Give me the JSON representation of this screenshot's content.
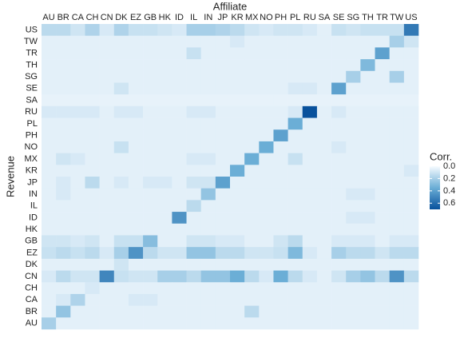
{
  "chart_data": {
    "type": "heatmap",
    "x_label": "Affiliate",
    "y_label": "Revenue",
    "legend_title": "Corr.",
    "cols": [
      "AU",
      "BR",
      "CA",
      "CH",
      "CN",
      "DK",
      "EZ",
      "GB",
      "HK",
      "ID",
      "IL",
      "IN",
      "JP",
      "KR",
      "MX",
      "NO",
      "PH",
      "PL",
      "RU",
      "SA",
      "SE",
      "SG",
      "TH",
      "TR",
      "TW",
      "US"
    ],
    "rows": [
      "US",
      "TW",
      "TR",
      "TH",
      "SG",
      "SE",
      "SA",
      "RU",
      "PL",
      "PH",
      "NO",
      "MX",
      "KR",
      "JP",
      "IN",
      "IL",
      "ID",
      "HK",
      "GB",
      "EZ",
      "DK",
      "CN",
      "CH",
      "CA",
      "BR",
      "AU"
    ],
    "values": [
      [
        0.15,
        0.15,
        0.1,
        0.18,
        0.08,
        0.18,
        0.12,
        0.12,
        0.1,
        0.08,
        0.2,
        0.2,
        0.18,
        0.15,
        0.1,
        0.08,
        0.1,
        0.1,
        0.08,
        0.05,
        0.12,
        0.1,
        0.12,
        0.12,
        0.12,
        0.55
      ],
      [
        0.05,
        0.05,
        0.05,
        0.05,
        0.05,
        0.05,
        0.05,
        0.05,
        0.05,
        0.05,
        0.05,
        0.05,
        0.05,
        0.08,
        0.05,
        0.05,
        0.05,
        0.05,
        0.05,
        0.05,
        0.05,
        0.05,
        0.05,
        0.05,
        0.2,
        0.1
      ],
      [
        0.05,
        0.05,
        0.05,
        0.05,
        0.05,
        0.05,
        0.05,
        0.05,
        0.05,
        0.05,
        0.12,
        0.05,
        0.05,
        0.05,
        0.05,
        0.05,
        0.05,
        0.05,
        0.05,
        0.05,
        0.05,
        0.05,
        0.05,
        0.4,
        0.05,
        0.05
      ],
      [
        0.05,
        0.05,
        0.05,
        0.05,
        0.05,
        0.05,
        0.05,
        0.05,
        0.05,
        0.05,
        0.05,
        0.05,
        0.05,
        0.05,
        0.05,
        0.05,
        0.05,
        0.05,
        0.05,
        0.05,
        0.05,
        0.05,
        0.3,
        0.05,
        0.05,
        0.05
      ],
      [
        0.05,
        0.05,
        0.05,
        0.05,
        0.05,
        0.05,
        0.05,
        0.05,
        0.05,
        0.05,
        0.05,
        0.05,
        0.05,
        0.05,
        0.05,
        0.05,
        0.05,
        0.05,
        0.05,
        0.05,
        0.05,
        0.2,
        0.05,
        0.05,
        0.2,
        0.05
      ],
      [
        0.05,
        0.05,
        0.05,
        0.05,
        0.05,
        0.1,
        0.05,
        0.05,
        0.05,
        0.05,
        0.05,
        0.05,
        0.05,
        0.05,
        0.05,
        0.05,
        0.05,
        0.08,
        0.08,
        0.05,
        0.4,
        0.05,
        0.05,
        0.05,
        0.05,
        0.05
      ],
      [
        0.04,
        0.04,
        0.04,
        0.04,
        0.04,
        0.04,
        0.04,
        0.04,
        0.04,
        0.04,
        0.04,
        0.04,
        0.04,
        0.04,
        0.04,
        0.04,
        0.04,
        0.04,
        0.04,
        0.04,
        0.04,
        0.04,
        0.04,
        0.04,
        0.04,
        0.04
      ],
      [
        0.08,
        0.08,
        0.08,
        0.08,
        0.05,
        0.08,
        0.08,
        0.05,
        0.05,
        0.05,
        0.08,
        0.08,
        0.05,
        0.05,
        0.05,
        0.05,
        0.05,
        0.08,
        0.7,
        0.05,
        0.08,
        0.05,
        0.05,
        0.05,
        0.05,
        0.05
      ],
      [
        0.05,
        0.05,
        0.05,
        0.05,
        0.05,
        0.05,
        0.05,
        0.05,
        0.05,
        0.05,
        0.05,
        0.05,
        0.05,
        0.05,
        0.05,
        0.05,
        0.05,
        0.35,
        0.05,
        0.05,
        0.05,
        0.05,
        0.05,
        0.05,
        0.05,
        0.05
      ],
      [
        0.05,
        0.05,
        0.05,
        0.05,
        0.05,
        0.05,
        0.05,
        0.05,
        0.05,
        0.05,
        0.05,
        0.05,
        0.05,
        0.05,
        0.05,
        0.05,
        0.4,
        0.05,
        0.05,
        0.05,
        0.05,
        0.05,
        0.05,
        0.05,
        0.05,
        0.05
      ],
      [
        0.05,
        0.05,
        0.05,
        0.05,
        0.05,
        0.12,
        0.05,
        0.05,
        0.05,
        0.05,
        0.05,
        0.05,
        0.05,
        0.05,
        0.05,
        0.35,
        0.05,
        0.05,
        0.05,
        0.05,
        0.08,
        0.05,
        0.05,
        0.05,
        0.05,
        0.05
      ],
      [
        0.05,
        0.1,
        0.08,
        0.05,
        0.05,
        0.05,
        0.05,
        0.05,
        0.05,
        0.05,
        0.08,
        0.08,
        0.05,
        0.05,
        0.35,
        0.05,
        0.05,
        0.12,
        0.05,
        0.05,
        0.05,
        0.05,
        0.05,
        0.05,
        0.05,
        0.05
      ],
      [
        0.05,
        0.05,
        0.05,
        0.05,
        0.05,
        0.05,
        0.05,
        0.05,
        0.05,
        0.05,
        0.05,
        0.05,
        0.05,
        0.35,
        0.05,
        0.05,
        0.05,
        0.05,
        0.05,
        0.05,
        0.05,
        0.05,
        0.05,
        0.05,
        0.05,
        0.08
      ],
      [
        0.05,
        0.08,
        0.05,
        0.15,
        0.05,
        0.08,
        0.05,
        0.08,
        0.08,
        0.05,
        0.1,
        0.1,
        0.4,
        0.05,
        0.05,
        0.05,
        0.05,
        0.05,
        0.05,
        0.05,
        0.05,
        0.05,
        0.05,
        0.05,
        0.05,
        0.05
      ],
      [
        0.05,
        0.08,
        0.05,
        0.05,
        0.05,
        0.05,
        0.05,
        0.05,
        0.05,
        0.05,
        0.05,
        0.25,
        0.05,
        0.05,
        0.05,
        0.05,
        0.05,
        0.05,
        0.05,
        0.05,
        0.05,
        0.08,
        0.08,
        0.05,
        0.05,
        0.05
      ],
      [
        0.05,
        0.05,
        0.05,
        0.05,
        0.05,
        0.05,
        0.05,
        0.05,
        0.05,
        0.05,
        0.15,
        0.05,
        0.05,
        0.05,
        0.05,
        0.05,
        0.05,
        0.05,
        0.05,
        0.05,
        0.05,
        0.05,
        0.05,
        0.05,
        0.05,
        0.05
      ],
      [
        0.05,
        0.05,
        0.05,
        0.05,
        0.05,
        0.05,
        0.05,
        0.05,
        0.05,
        0.45,
        0.05,
        0.05,
        0.05,
        0.05,
        0.05,
        0.05,
        0.05,
        0.05,
        0.05,
        0.05,
        0.05,
        0.08,
        0.08,
        0.05,
        0.05,
        0.05
      ],
      [
        0.05,
        0.05,
        0.05,
        0.05,
        0.05,
        0.05,
        0.05,
        0.05,
        0.05,
        0.05,
        0.05,
        0.05,
        0.05,
        0.05,
        0.05,
        0.05,
        0.05,
        0.05,
        0.05,
        0.05,
        0.05,
        0.05,
        0.05,
        0.05,
        0.05,
        0.05
      ],
      [
        0.1,
        0.1,
        0.08,
        0.1,
        0.05,
        0.12,
        0.12,
        0.28,
        0.05,
        0.05,
        0.1,
        0.1,
        0.08,
        0.08,
        0.05,
        0.05,
        0.1,
        0.15,
        0.05,
        0.05,
        0.08,
        0.08,
        0.08,
        0.05,
        0.08,
        0.08
      ],
      [
        0.12,
        0.15,
        0.12,
        0.15,
        0.08,
        0.2,
        0.45,
        0.15,
        0.1,
        0.1,
        0.25,
        0.25,
        0.15,
        0.15,
        0.1,
        0.1,
        0.12,
        0.3,
        0.08,
        0.05,
        0.2,
        0.15,
        0.15,
        0.1,
        0.15,
        0.15
      ],
      [
        0.05,
        0.05,
        0.05,
        0.05,
        0.05,
        0.1,
        0.05,
        0.05,
        0.05,
        0.05,
        0.05,
        0.05,
        0.05,
        0.05,
        0.05,
        0.05,
        0.05,
        0.05,
        0.05,
        0.05,
        0.05,
        0.05,
        0.05,
        0.05,
        0.05,
        0.05
      ],
      [
        0.08,
        0.15,
        0.1,
        0.1,
        0.5,
        0.12,
        0.1,
        0.1,
        0.2,
        0.2,
        0.15,
        0.25,
        0.25,
        0.35,
        0.15,
        0.08,
        0.35,
        0.15,
        0.08,
        0.05,
        0.1,
        0.2,
        0.25,
        0.15,
        0.45,
        0.15
      ],
      [
        0.05,
        0.05,
        0.05,
        0.08,
        0.05,
        0.05,
        0.05,
        0.05,
        0.05,
        0.05,
        0.05,
        0.05,
        0.05,
        0.05,
        0.05,
        0.05,
        0.05,
        0.05,
        0.05,
        0.05,
        0.05,
        0.05,
        0.05,
        0.05,
        0.05,
        0.05
      ],
      [
        0.05,
        0.08,
        0.18,
        0.05,
        0.05,
        0.05,
        0.08,
        0.08,
        0.05,
        0.05,
        0.05,
        0.05,
        0.05,
        0.05,
        0.05,
        0.05,
        0.05,
        0.05,
        0.05,
        0.05,
        0.05,
        0.05,
        0.05,
        0.05,
        0.05,
        0.05
      ],
      [
        0.05,
        0.25,
        0.05,
        0.05,
        0.05,
        0.05,
        0.05,
        0.05,
        0.05,
        0.05,
        0.05,
        0.05,
        0.05,
        0.05,
        0.15,
        0.05,
        0.05,
        0.05,
        0.05,
        0.05,
        0.05,
        0.05,
        0.05,
        0.05,
        0.05,
        0.05
      ],
      [
        0.2,
        0.05,
        0.05,
        0.05,
        0.05,
        0.05,
        0.05,
        0.05,
        0.05,
        0.05,
        0.05,
        0.05,
        0.05,
        0.05,
        0.05,
        0.05,
        0.05,
        0.05,
        0.05,
        0.05,
        0.05,
        0.05,
        0.05,
        0.05,
        0.05,
        0.05
      ]
    ],
    "clim": [
      0,
      0.7
    ],
    "colors": [
      "#f7fbff",
      "#6baed6",
      "#08519c"
    ],
    "cticks": [
      {
        "value": 0,
        "label": "0.0"
      },
      0.2,
      0.4,
      0.6
    ]
  }
}
